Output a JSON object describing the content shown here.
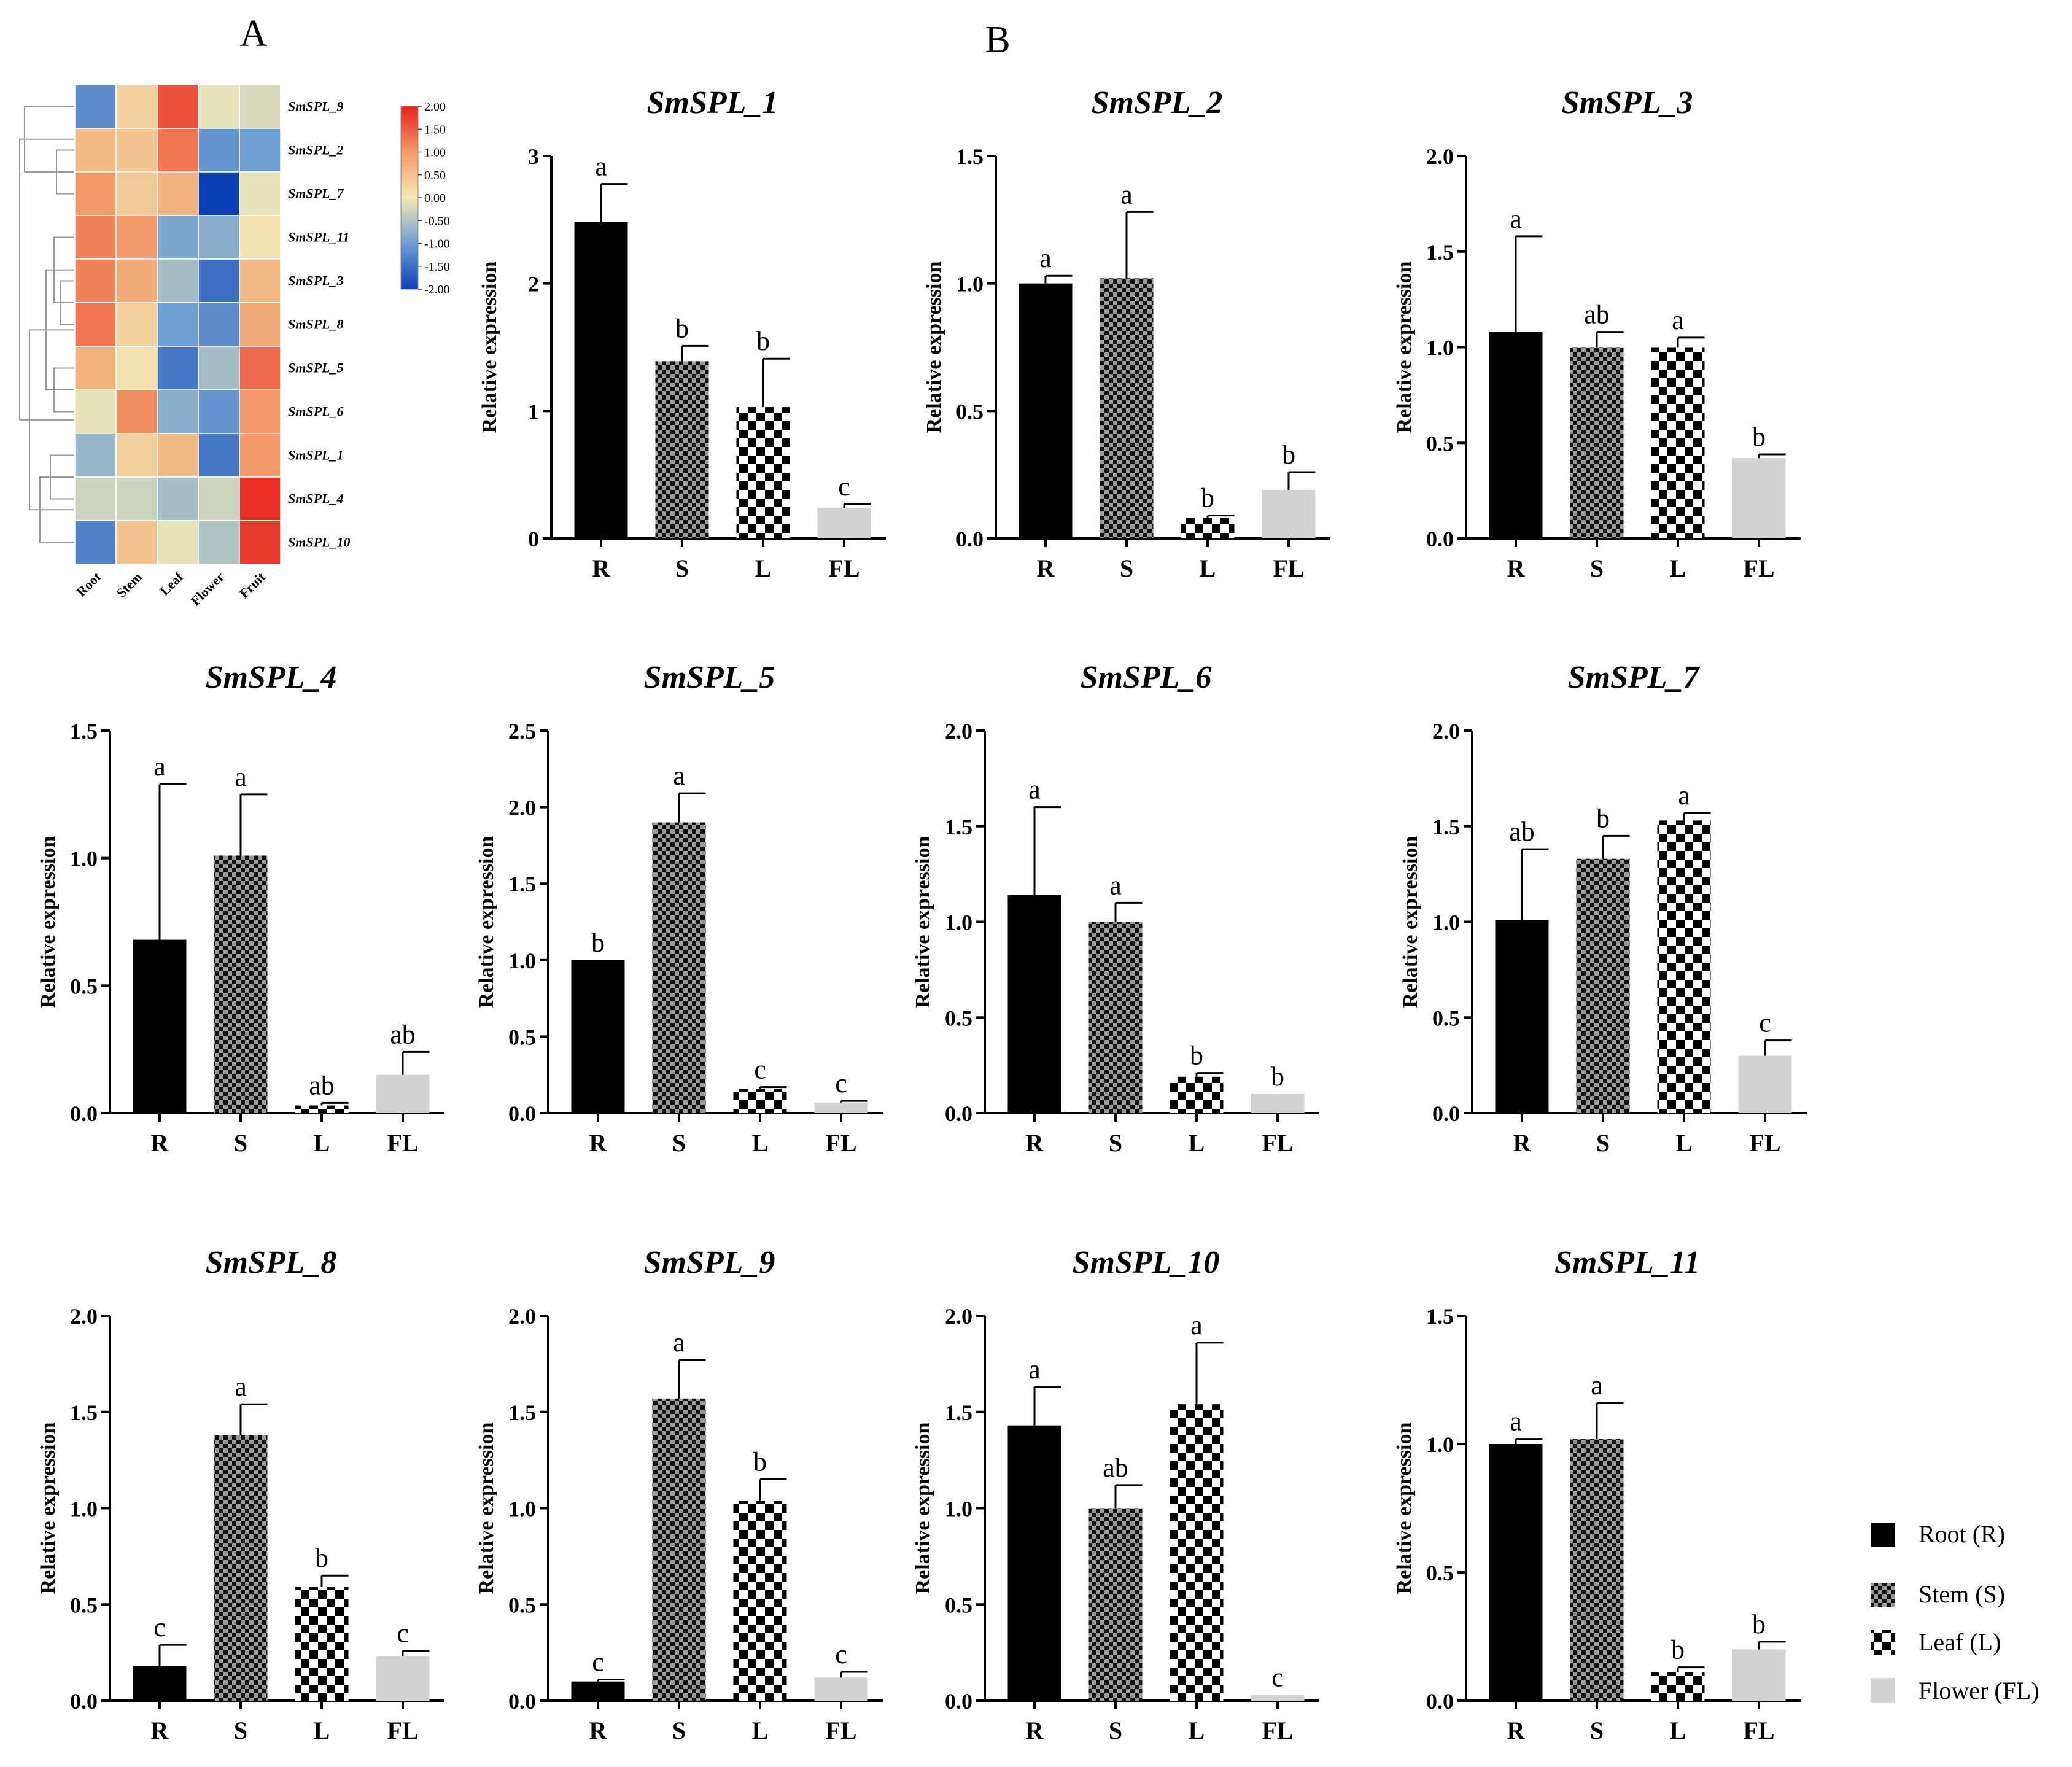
{
  "panel_labels": {
    "a": "A",
    "b": "B"
  },
  "legend": [
    {
      "key": "R",
      "label": "Root (R)"
    },
    {
      "key": "S",
      "label": "Stem (S)"
    },
    {
      "key": "L",
      "label": "Leaf (L)"
    },
    {
      "key": "FL",
      "label": "Flower (FL)"
    }
  ],
  "colors": {
    "root": "#000000",
    "flower": "#d3d3d3",
    "stem_dark": "#111111",
    "stem_light": "#9a9a9a",
    "leaf_dark": "#000000",
    "leaf_light": "#ffffff"
  },
  "chart_data": [
    {
      "type": "heatmap",
      "title": "",
      "columns": [
        "Root",
        "Stem",
        "Leaf",
        "Flower",
        "Fruit"
      ],
      "rows": [
        "SmSPL_9",
        "SmSPL_2",
        "SmSPL_7",
        "SmSPL_11",
        "SmSPL_3",
        "SmSPL_8",
        "SmSPL_5",
        "SmSPL_6",
        "SmSPL_1",
        "SmSPL_4",
        "SmSPL_10"
      ],
      "values": [
        [
          -1.2,
          0.3,
          1.6,
          -0.1,
          -0.2
        ],
        [
          0.6,
          0.5,
          1.3,
          -1.1,
          -1.0
        ],
        [
          1.0,
          0.4,
          0.7,
          -2.0,
          -0.1
        ],
        [
          1.2,
          1.0,
          -0.9,
          -0.8,
          0.1
        ],
        [
          1.2,
          0.8,
          -0.6,
          -1.5,
          0.6
        ],
        [
          1.3,
          0.3,
          -1.0,
          -1.2,
          0.8
        ],
        [
          0.7,
          0.1,
          -1.4,
          -0.6,
          1.4
        ],
        [
          -0.1,
          1.1,
          -0.8,
          -1.1,
          1.0
        ],
        [
          -0.7,
          0.3,
          0.6,
          -1.4,
          1.0
        ],
        [
          -0.3,
          -0.3,
          -0.6,
          -0.3,
          1.9
        ],
        [
          -1.3,
          0.5,
          -0.1,
          -0.5,
          1.8
        ]
      ],
      "colorbar": {
        "min": -2.0,
        "max": 2.0,
        "ticks": [
          "2.00",
          "1.50",
          "1.00",
          "0.50",
          "0.00",
          "-0.50",
          "-1.00",
          "-1.50",
          "-2.00"
        ]
      }
    },
    {
      "type": "bar",
      "title": "SmSPL_1",
      "categories": [
        "R",
        "S",
        "L",
        "FL"
      ],
      "values": [
        2.48,
        1.39,
        1.03,
        0.24
      ],
      "errors": [
        0.3,
        0.12,
        0.38,
        0.03
      ],
      "sig": [
        "a",
        "b",
        "b",
        "c"
      ],
      "ylabel": "Relative expression",
      "ylim": [
        0,
        3
      ],
      "yticks": [
        "0",
        "1",
        "2",
        "3"
      ]
    },
    {
      "type": "bar",
      "title": "SmSPL_2",
      "categories": [
        "R",
        "S",
        "L",
        "FL"
      ],
      "values": [
        1.0,
        1.02,
        0.08,
        0.19
      ],
      "errors": [
        0.03,
        0.26,
        0.01,
        0.07
      ],
      "sig": [
        "a",
        "a",
        "b",
        "b"
      ],
      "ylabel": "Relative expression",
      "ylim": [
        0,
        1.5
      ],
      "yticks": [
        "0.0",
        "0.5",
        "1.0",
        "1.5"
      ]
    },
    {
      "type": "bar",
      "title": "SmSPL_3",
      "categories": [
        "R",
        "S",
        "L",
        "FL"
      ],
      "values": [
        1.08,
        1.0,
        1.0,
        0.42
      ],
      "errors": [
        0.5,
        0.08,
        0.05,
        0.02
      ],
      "sig": [
        "a",
        "ab",
        "a",
        "b"
      ],
      "ylabel": "Relative expression",
      "ylim": [
        0,
        2
      ],
      "yticks": [
        "0.0",
        "0.5",
        "1.0",
        "1.5",
        "2.0"
      ]
    },
    {
      "type": "bar",
      "title": "SmSPL_4",
      "categories": [
        "R",
        "S",
        "L",
        "FL"
      ],
      "values": [
        0.68,
        1.01,
        0.03,
        0.15
      ],
      "errors": [
        0.61,
        0.24,
        0.01,
        0.09
      ],
      "sig": [
        "a",
        "a",
        "ab",
        "ab"
      ],
      "ylabel": "Relative expression",
      "ylim": [
        0,
        1.5
      ],
      "yticks": [
        "0.0",
        "0.5",
        "1.0",
        "1.5"
      ]
    },
    {
      "type": "bar",
      "title": "SmSPL_5",
      "categories": [
        "R",
        "S",
        "L",
        "FL"
      ],
      "values": [
        1.0,
        1.9,
        0.16,
        0.07
      ],
      "errors": [
        0.0,
        0.19,
        0.01,
        0.01
      ],
      "sig": [
        "b",
        "a",
        "c",
        "c"
      ],
      "ylabel": "Relative expression",
      "ylim": [
        0,
        2.5
      ],
      "yticks": [
        "0.0",
        "0.5",
        "1.0",
        "1.5",
        "2.0",
        "2.5"
      ]
    },
    {
      "type": "bar",
      "title": "SmSPL_6",
      "categories": [
        "R",
        "S",
        "L",
        "FL"
      ],
      "values": [
        1.14,
        1.0,
        0.19,
        0.1
      ],
      "errors": [
        0.46,
        0.1,
        0.02,
        0.0
      ],
      "sig": [
        "a",
        "a",
        "b",
        "b"
      ],
      "ylabel": "Relative expression",
      "ylim": [
        0,
        2
      ],
      "yticks": [
        "0.0",
        "0.5",
        "1.0",
        "1.5",
        "2.0"
      ]
    },
    {
      "type": "bar",
      "title": "SmSPL_7",
      "categories": [
        "R",
        "S",
        "L",
        "FL"
      ],
      "values": [
        1.01,
        1.33,
        1.53,
        0.3
      ],
      "errors": [
        0.37,
        0.12,
        0.04,
        0.08
      ],
      "sig": [
        "ab",
        "b",
        "a",
        "c"
      ],
      "ylabel": "Relative expression",
      "ylim": [
        0,
        2
      ],
      "yticks": [
        "0.0",
        "0.5",
        "1.0",
        "1.5",
        "2.0"
      ]
    },
    {
      "type": "bar",
      "title": "SmSPL_8",
      "categories": [
        "R",
        "S",
        "L",
        "FL"
      ],
      "values": [
        0.18,
        1.38,
        0.59,
        0.23
      ],
      "errors": [
        0.11,
        0.16,
        0.06,
        0.03
      ],
      "sig": [
        "c",
        "a",
        "b",
        "c"
      ],
      "ylabel": "Relative expression",
      "ylim": [
        0,
        2
      ],
      "yticks": [
        "0.0",
        "0.5",
        "1.0",
        "1.5",
        "2.0"
      ]
    },
    {
      "type": "bar",
      "title": "SmSPL_9",
      "categories": [
        "R",
        "S",
        "L",
        "FL"
      ],
      "values": [
        0.1,
        1.57,
        1.04,
        0.12
      ],
      "errors": [
        0.01,
        0.2,
        0.11,
        0.03
      ],
      "sig": [
        "c",
        "a",
        "b",
        "c"
      ],
      "ylabel": "Relative expression",
      "ylim": [
        0,
        2
      ],
      "yticks": [
        "0.0",
        "0.5",
        "1.0",
        "1.5",
        "2.0"
      ]
    },
    {
      "type": "bar",
      "title": "SmSPL_10",
      "categories": [
        "R",
        "S",
        "L",
        "FL"
      ],
      "values": [
        1.43,
        1.0,
        1.54,
        0.03
      ],
      "errors": [
        0.2,
        0.12,
        0.32,
        0.0
      ],
      "sig": [
        "a",
        "ab",
        "a",
        "c"
      ],
      "ylabel": "Relative expression",
      "ylim": [
        0,
        2
      ],
      "yticks": [
        "0.0",
        "0.5",
        "1.0",
        "1.5",
        "2.0"
      ]
    },
    {
      "type": "bar",
      "title": "SmSPL_11",
      "categories": [
        "R",
        "S",
        "L",
        "FL"
      ],
      "values": [
        1.0,
        1.02,
        0.11,
        0.2
      ],
      "errors": [
        0.02,
        0.14,
        0.02,
        0.03
      ],
      "sig": [
        "a",
        "a",
        "b",
        "b"
      ],
      "ylabel": "Relative expression",
      "ylim": [
        0,
        1.5
      ],
      "yticks": [
        "0.0",
        "0.5",
        "1.0",
        "1.5"
      ]
    }
  ]
}
